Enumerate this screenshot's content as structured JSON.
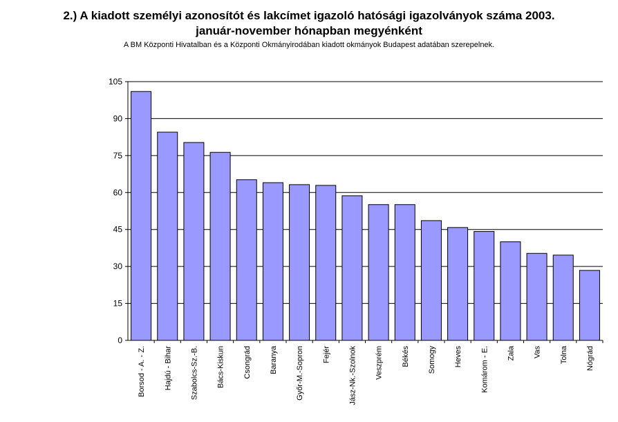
{
  "title_line1": "2.) A kiadott személyi azonosítót és lakcímet igazoló hatósági igazolványok száma 2003.",
  "title_line2": "január-november hónapban megyénként",
  "subtitle": "A BM Központi Hivatalban és a Központi Okmányirodában kiadott okmányok Budapest adatában szerepelnek.",
  "colors": {
    "bar_fill": "#9999ff",
    "bar_stroke": "#000000",
    "grid": "#000000",
    "background": "#ffffff"
  },
  "chart_data": {
    "type": "bar",
    "categories": [
      "Borsod - A. - Z.",
      "Hajdú - Bihar",
      "Szabolcs-Sz.-B.",
      "Bács-Kiskun",
      "Csongrád",
      "Baranya",
      "Győr-M.-Sopron",
      "Fejér",
      "Jász-Nk.-Szolnok",
      "Veszprém",
      "Békés",
      "Somogy",
      "Heves",
      "Komárom - E.",
      "Zala",
      "Vas",
      "Tolna",
      "Nógrád"
    ],
    "values": [
      101,
      84.5,
      80.3,
      76.3,
      65.2,
      64,
      63.2,
      62.9,
      58.7,
      55.1,
      55.1,
      48.6,
      45.8,
      44.2,
      40,
      35.3,
      34.6,
      28.4
    ],
    "ylim": [
      0,
      105
    ],
    "yticks": [
      "0",
      "15",
      "30",
      "45",
      "60",
      "75",
      "90",
      "105"
    ],
    "grid": true,
    "legend": "none"
  }
}
